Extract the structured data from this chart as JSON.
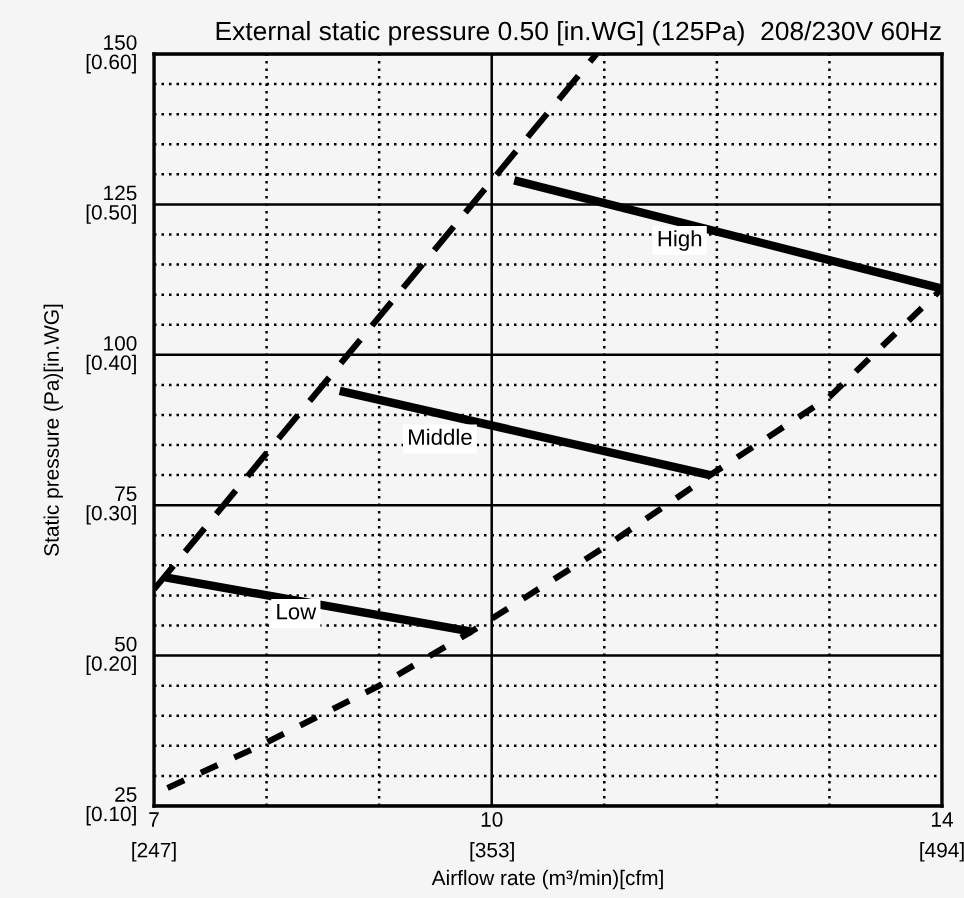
{
  "chart_data": {
    "type": "line",
    "title": "External static pressure 0.50 [in.WG] (125Pa)  208/230V 60Hz",
    "xlabel": "Airflow rate (m³/min)[cfm]",
    "y2label": "Static pressure (Pa)[in.WG]",
    "xlim": [
      7,
      14
    ],
    "ylim": [
      25,
      150
    ],
    "xticks": [
      7,
      {
        "value": 8,
        "label": null
      },
      {
        "value": 9,
        "label": null
      },
      10,
      {
        "value": 11,
        "label": null
      },
      {
        "value": 12,
        "label": null
      },
      {
        "value": 13,
        "label": null
      },
      14
    ],
    "yticks": [
      25,
      {
        "value": 30,
        "label": null
      },
      {
        "value": 35,
        "label": null
      },
      {
        "value": 40,
        "label": null
      },
      {
        "value": 45,
        "label": null
      },
      50,
      {
        "value": 55,
        "label": null
      },
      {
        "value": 60,
        "label": null
      },
      {
        "value": 65,
        "label": null
      },
      {
        "value": 70,
        "label": null
      },
      75,
      {
        "value": 80,
        "label": null
      },
      {
        "value": 85,
        "label": null
      },
      {
        "value": 90,
        "label": null
      },
      {
        "value": 95,
        "label": null
      },
      100,
      {
        "value": 105,
        "label": null
      },
      {
        "value": 110,
        "label": null
      },
      {
        "value": 115,
        "label": null
      },
      {
        "value": 120,
        "label": null
      },
      125,
      {
        "value": 130,
        "label": null
      },
      {
        "value": 135,
        "label": null
      },
      {
        "value": 140,
        "label": null
      },
      {
        "value": 145,
        "label": null
      },
      150
    ],
    "x2lim": [
      247,
      494
    ],
    "x2ticks": [
      {
        "value": 247,
        "label": "[247]"
      },
      {
        "value": 353,
        "label": "[353]"
      },
      {
        "value": 494,
        "label": "[494]"
      }
    ],
    "y2lim": [
      0.1,
      0.6
    ],
    "y2ticks": [
      {
        "value": 0.1,
        "label": "[0.10]"
      },
      {
        "value": 0.2,
        "label": "[0.20]"
      },
      {
        "value": 0.3,
        "label": "[0.30]"
      },
      {
        "value": 0.4,
        "label": "[0.40]"
      },
      {
        "value": 0.5,
        "label": "[0.50]"
      },
      {
        "value": 0.6,
        "label": "[0.60]"
      }
    ],
    "grid": true,
    "series": [
      {
        "color": "#000000",
        "line_style": "solid",
        "x": [
          10.2,
          14
        ],
        "values": [
          129,
          111
        ]
      },
      {
        "color": "#000000",
        "line_style": "solid",
        "x": [
          8.65,
          11.94
        ],
        "values": [
          94,
          80
        ]
      },
      {
        "color": "#000000",
        "line_style": "solid",
        "x": [
          7.1,
          9.82
        ],
        "values": [
          63,
          54
        ]
      },
      {
        "color": "#000000",
        "line_style": "dashed",
        "x": [
          7,
          10.93
        ],
        "values": [
          61,
          150
        ]
      },
      {
        "color": "#000000",
        "line_style": "dashed",
        "x": [
          7.12,
          7.94,
          9.0,
          9.82,
          11.0,
          11.94,
          13.0,
          14
        ],
        "values": [
          28,
          35,
          45,
          54,
          68,
          80,
          93,
          111
        ]
      }
    ],
    "annotations": [
      {
        "text": "High",
        "x": 11.67,
        "y": 119
      },
      {
        "text": "Middle",
        "x": 9.54,
        "y": 86
      },
      {
        "text": "Low",
        "x": 8.26,
        "y": 57
      }
    ]
  }
}
